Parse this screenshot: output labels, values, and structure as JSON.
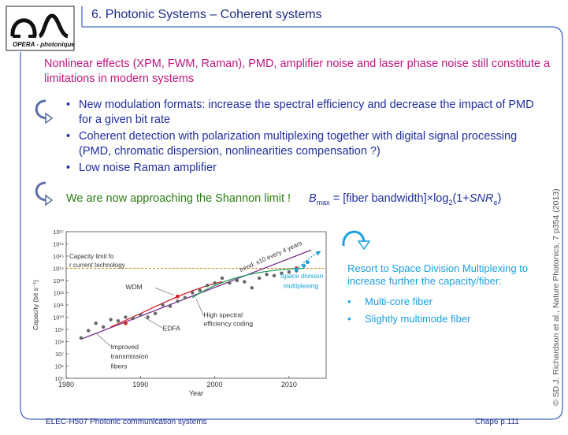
{
  "header": {
    "title": "6. Photonic Systems – Coherent systems",
    "logo_text": "OPERA - photonique"
  },
  "intro": "Nonlinear effects (XPM, FWM, Raman), PMD, amplifier noise and laser phase noise still constitute a limitations in modern systems",
  "bullets": [
    "New modulation formats: increase the spectral efficiency and decrease the impact of PMD for a given bit rate",
    "Coherent detection with polarization multiplexing together with digital signal processing (PMD, chromatic dispersion, nonlinearities compensation ?)",
    "Low noise Raman amplifier"
  ],
  "bullet_glyph": "•",
  "shannon": {
    "text": "We are now approaching the Shannon limit !",
    "formula_B": "B",
    "formula_sub": "max",
    "formula_body": " = [fiber bandwidth]×log",
    "formula_log_sub": "2",
    "formula_tail": "(1+",
    "formula_snr": "SNR",
    "formula_snr_sub": "e",
    "formula_close": ")"
  },
  "side": {
    "resort": "Resort to Space Division Multiplexing to increase further the capacity/fiber:",
    "items": [
      "Multi-core fiber",
      "Slightly multimode fiber"
    ]
  },
  "citation": "© SD.J. Richardson et al., Nature Photonics, 7 p354 (2013)",
  "footer": {
    "left": "ELEC-H507  Photonic communication systems",
    "right": "Chap6 p.111"
  },
  "chart_data": {
    "type": "scatter",
    "ylabel": "Capacity (bit s⁻¹)",
    "xlabel": "Year",
    "xlim": [
      1980,
      2015
    ],
    "ylim_exp": [
      5,
      17
    ],
    "log_scale_y": true,
    "xticks": [
      "1980",
      "1990",
      "2000",
      "2010"
    ],
    "xtick_values": [
      1980,
      1990,
      2000,
      2010
    ],
    "yticks": [
      "10¹⁷",
      "10¹⁶",
      "10¹⁵",
      "10¹⁴",
      "10¹³",
      "10¹²",
      "10¹¹",
      "10¹⁰",
      "10⁹",
      "10⁸",
      "10⁷",
      "10⁶",
      "10⁵"
    ],
    "ytick_exps": [
      17,
      16,
      15,
      14,
      13,
      12,
      11,
      10,
      9,
      8,
      7,
      6,
      5
    ],
    "capacity_limit_label": "Capacity limit for current technology",
    "capacity_limit_exp": 14,
    "annotations": {
      "wdm": "WDM",
      "edfa": "EDFA",
      "fibers": "Improved transmission fibers",
      "coding": "High spectral efficiency coding",
      "sdm": "Space division multiplexing",
      "trend": "trend: x10 every 4 years"
    },
    "points": [
      {
        "x": 1982,
        "y": 8.3
      },
      {
        "x": 1983,
        "y": 8.9
      },
      {
        "x": 1984,
        "y": 9.5
      },
      {
        "x": 1985,
        "y": 9.2
      },
      {
        "x": 1986,
        "y": 9.8
      },
      {
        "x": 1987,
        "y": 9.7
      },
      {
        "x": 1988,
        "y": 10.0
      },
      {
        "x": 1989,
        "y": 9.9
      },
      {
        "x": 1990,
        "y": 10.2
      },
      {
        "x": 1991,
        "y": 10.0
      },
      {
        "x": 1992,
        "y": 10.3
      },
      {
        "x": 1993,
        "y": 11.0
      },
      {
        "x": 1994,
        "y": 10.9
      },
      {
        "x": 1995,
        "y": 11.3
      },
      {
        "x": 1996,
        "y": 11.6
      },
      {
        "x": 1997,
        "y": 12.0
      },
      {
        "x": 1998,
        "y": 12.2
      },
      {
        "x": 1999,
        "y": 12.6
      },
      {
        "x": 2000,
        "y": 12.8
      },
      {
        "x": 2001,
        "y": 13.2
      },
      {
        "x": 2002,
        "y": 12.8
      },
      {
        "x": 2003,
        "y": 13.0
      },
      {
        "x": 2004,
        "y": 12.9
      },
      {
        "x": 2005,
        "y": 12.4
      },
      {
        "x": 2006,
        "y": 13.2
      },
      {
        "x": 2007,
        "y": 13.5
      },
      {
        "x": 2008,
        "y": 13.4
      },
      {
        "x": 2009,
        "y": 13.6
      },
      {
        "x": 2010,
        "y": 13.7
      },
      {
        "x": 2011,
        "y": 13.8
      }
    ],
    "red_points": [
      {
        "x": 1988,
        "y": 9.5
      },
      {
        "x": 1995,
        "y": 11.7
      },
      {
        "x": 2011,
        "y": 14.0
      }
    ],
    "sdm_points": [
      {
        "x": 2011,
        "y": 13.9
      },
      {
        "x": 2012,
        "y": 14.2
      },
      {
        "x": 2012.5,
        "y": 14.5
      }
    ],
    "colors": {
      "trend": "#7b2d8e",
      "edfa": "#d2232a",
      "coding": "#1ea05a",
      "sdm": "#19a0d8",
      "limit": "#e08a22",
      "points": "#666666"
    }
  },
  "colors": {
    "title": "#1f2d86",
    "intro": "#c0177e",
    "bullets": "#1f2fa0",
    "shannon": "#2c7d12",
    "side": "#19a0e0",
    "frame": "#3b5ec8"
  }
}
